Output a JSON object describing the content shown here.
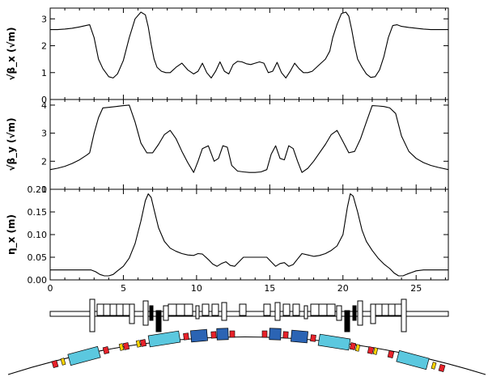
{
  "chart_data": [
    {
      "type": "line",
      "ylabel": "√β_x (√m)",
      "ylim": [
        0,
        3.4
      ],
      "yticks": [
        0,
        1,
        2,
        3
      ],
      "xlim": [
        0,
        27.2
      ],
      "x": [
        0,
        0.5,
        1,
        1.5,
        2,
        2.5,
        2.7,
        3,
        3.3,
        3.6,
        4,
        4.3,
        4.6,
        5,
        5.4,
        5.8,
        6.2,
        6.5,
        6.7,
        6.9,
        7.1,
        7.3,
        7.6,
        7.9,
        8.2,
        8.6,
        9,
        9.4,
        9.8,
        10.1,
        10.4,
        10.7,
        11,
        11.3,
        11.6,
        11.9,
        12.2,
        12.5,
        12.8,
        13.1,
        13.4,
        13.7,
        14,
        14.3,
        14.6,
        14.9,
        15.2,
        15.5,
        15.8,
        16.1,
        16.4,
        16.7,
        17,
        17.3,
        17.6,
        17.9,
        18.2,
        18.5,
        18.8,
        19.1,
        19.3,
        19.6,
        19.9,
        20.2,
        20.4,
        20.6,
        20.8,
        21,
        21.3,
        21.6,
        21.9,
        22.2,
        22.5,
        22.8,
        23.1,
        23.4,
        23.7,
        24,
        24.5,
        25,
        25.5,
        26,
        26.5,
        27.2
      ],
      "y": [
        2.6,
        2.6,
        2.62,
        2.65,
        2.7,
        2.76,
        2.78,
        2.3,
        1.5,
        1.15,
        0.85,
        0.8,
        0.95,
        1.45,
        2.3,
        3.0,
        3.25,
        3.15,
        2.7,
        2.05,
        1.5,
        1.2,
        1.05,
        1.0,
        1.0,
        1.2,
        1.35,
        1.1,
        0.95,
        1.05,
        1.35,
        1.0,
        0.8,
        1.05,
        1.4,
        1.05,
        0.95,
        1.3,
        1.42,
        1.4,
        1.33,
        1.3,
        1.35,
        1.4,
        1.35,
        1.0,
        1.05,
        1.38,
        1.0,
        0.8,
        1.05,
        1.35,
        1.15,
        1.0,
        1.0,
        1.05,
        1.2,
        1.35,
        1.5,
        1.8,
        2.3,
        2.8,
        3.2,
        3.25,
        3.1,
        2.6,
        2.0,
        1.5,
        1.2,
        0.95,
        0.82,
        0.85,
        1.1,
        1.6,
        2.3,
        2.75,
        2.78,
        2.72,
        2.68,
        2.65,
        2.62,
        2.6,
        2.6,
        2.6
      ]
    },
    {
      "type": "line",
      "ylabel": "√β_y (√m)",
      "ylim": [
        1,
        4.2
      ],
      "yticks": [
        1,
        2,
        3,
        4
      ],
      "xlim": [
        0,
        27.2
      ],
      "x": [
        0,
        0.5,
        1,
        1.5,
        2,
        2.5,
        2.7,
        3,
        3.3,
        3.6,
        4,
        4.5,
        5,
        5.4,
        5.8,
        6.2,
        6.6,
        7,
        7.4,
        7.8,
        8.2,
        8.6,
        9,
        9.4,
        9.8,
        10.1,
        10.4,
        10.8,
        11.2,
        11.5,
        11.8,
        12.1,
        12.4,
        12.8,
        13.2,
        13.6,
        14,
        14.4,
        14.8,
        15.1,
        15.4,
        15.7,
        16,
        16.3,
        16.6,
        16.9,
        17.2,
        17.6,
        18,
        18.4,
        18.8,
        19.2,
        19.6,
        20,
        20.4,
        20.8,
        21.2,
        21.6,
        22,
        22.4,
        22.8,
        23.2,
        23.6,
        24,
        24.5,
        25,
        25.5,
        26,
        26.5,
        27.2
      ],
      "y": [
        1.7,
        1.75,
        1.82,
        1.92,
        2.05,
        2.22,
        2.3,
        3.0,
        3.55,
        3.9,
        3.92,
        3.95,
        3.98,
        4.0,
        3.4,
        2.65,
        2.3,
        2.3,
        2.6,
        2.95,
        3.1,
        2.8,
        2.35,
        1.95,
        1.6,
        2.0,
        2.45,
        2.55,
        2.0,
        2.1,
        2.55,
        2.5,
        1.85,
        1.65,
        1.62,
        1.6,
        1.6,
        1.62,
        1.7,
        2.25,
        2.55,
        2.1,
        2.05,
        2.55,
        2.45,
        2.0,
        1.6,
        1.75,
        2.0,
        2.3,
        2.6,
        2.95,
        3.1,
        2.7,
        2.3,
        2.35,
        2.8,
        3.4,
        3.98,
        3.97,
        3.95,
        3.9,
        3.7,
        2.9,
        2.35,
        2.1,
        1.95,
        1.85,
        1.78,
        1.7
      ]
    },
    {
      "type": "line",
      "ylabel": "η_x (m)",
      "ylim": [
        0,
        0.2
      ],
      "yticks": [
        0,
        0.05,
        0.1,
        0.15,
        0.2
      ],
      "ytick_labels": [
        "0.00",
        "0.05",
        "0.10",
        "0.15",
        "0.20"
      ],
      "xlim": [
        0,
        27.2
      ],
      "xticks": [
        0,
        5,
        10,
        15,
        20,
        25
      ],
      "xtick_labels": [
        "0",
        "5",
        "10",
        "15",
        "20",
        "25"
      ],
      "x": [
        0,
        0.5,
        1,
        1.5,
        2,
        2.5,
        2.8,
        3.1,
        3.4,
        3.7,
        4,
        4.3,
        4.6,
        5,
        5.4,
        5.8,
        6.2,
        6.5,
        6.7,
        6.9,
        7.1,
        7.4,
        7.8,
        8.2,
        8.6,
        9,
        9.4,
        9.8,
        10.1,
        10.4,
        10.8,
        11.1,
        11.4,
        11.7,
        12,
        12.3,
        12.6,
        12.9,
        13.2,
        13.5,
        14,
        14.5,
        14.8,
        15.1,
        15.4,
        15.7,
        16,
        16.3,
        16.6,
        16.9,
        17.2,
        17.6,
        18,
        18.4,
        18.8,
        19.2,
        19.6,
        20,
        20.3,
        20.5,
        20.7,
        21,
        21.3,
        21.6,
        22,
        22.4,
        22.8,
        23.2,
        23.5,
        23.8,
        24.1,
        24.4,
        25,
        25.5,
        26,
        26.5,
        27.2
      ],
      "y": [
        0.022,
        0.022,
        0.022,
        0.022,
        0.022,
        0.022,
        0.022,
        0.018,
        0.012,
        0.009,
        0.009,
        0.012,
        0.02,
        0.03,
        0.048,
        0.08,
        0.13,
        0.175,
        0.19,
        0.182,
        0.155,
        0.115,
        0.085,
        0.07,
        0.063,
        0.058,
        0.055,
        0.054,
        0.058,
        0.057,
        0.045,
        0.035,
        0.03,
        0.036,
        0.04,
        0.032,
        0.03,
        0.04,
        0.05,
        0.05,
        0.05,
        0.05,
        0.05,
        0.04,
        0.03,
        0.036,
        0.038,
        0.03,
        0.034,
        0.046,
        0.058,
        0.055,
        0.052,
        0.054,
        0.058,
        0.065,
        0.075,
        0.1,
        0.16,
        0.19,
        0.185,
        0.15,
        0.11,
        0.085,
        0.065,
        0.048,
        0.035,
        0.025,
        0.015,
        0.009,
        0.009,
        0.013,
        0.02,
        0.022,
        0.022,
        0.022,
        0.022
      ]
    }
  ]
}
